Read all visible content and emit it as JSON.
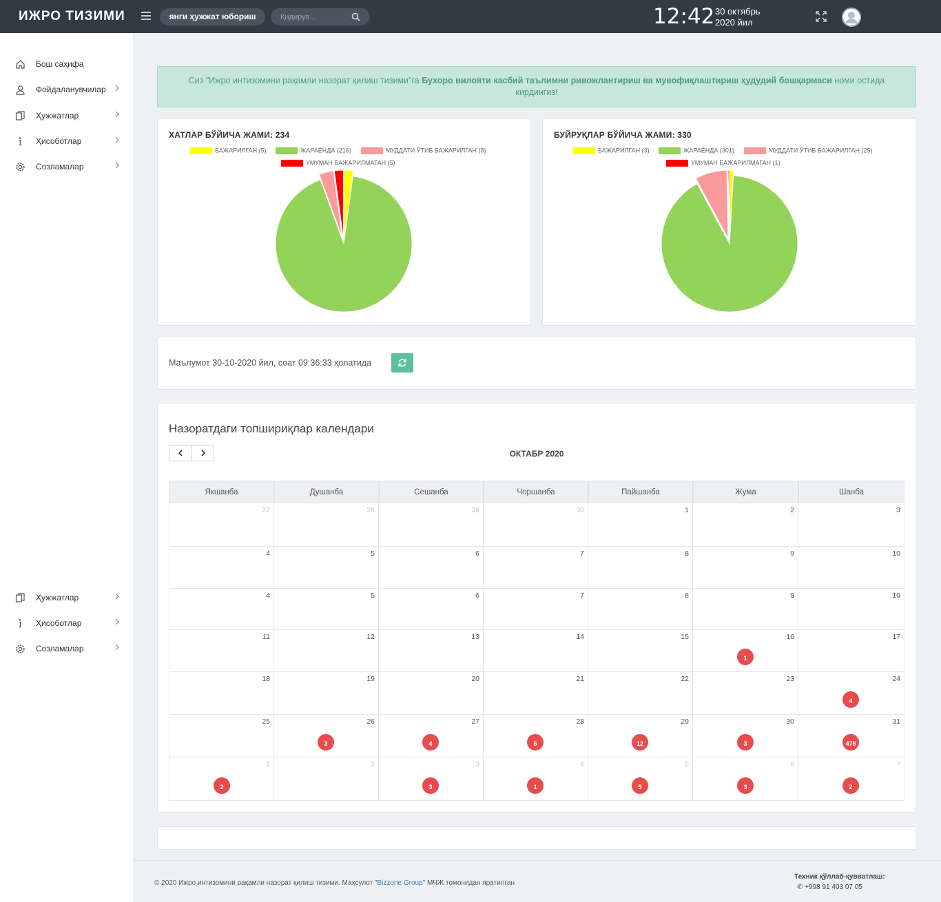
{
  "header": {
    "brand": "ИЖРО ТИЗИМИ",
    "new_doc_label": "янги ҳужжат юбориш",
    "search_placeholder": "Қидирув...",
    "time": "12:42",
    "date_line1": "30 октябрь",
    "date_line2": "2020 йил"
  },
  "sidebar": {
    "top_items": [
      {
        "label": "Бош саҳифа",
        "icon": "home-icon",
        "chevron": false
      },
      {
        "label": "Фойдаланувчилар",
        "icon": "user-icon",
        "chevron": true
      },
      {
        "label": "Ҳужжатлар",
        "icon": "documents-icon",
        "chevron": true
      },
      {
        "label": "Ҳисоботлар",
        "icon": "info-icon",
        "chevron": true
      },
      {
        "label": "Созламалар",
        "icon": "gear-icon",
        "chevron": true
      }
    ],
    "bottom_items": [
      {
        "label": "Ҳужжатлар",
        "icon": "documents-icon",
        "chevron": true
      },
      {
        "label": "Ҳисоботлар",
        "icon": "info-icon",
        "chevron": true
      },
      {
        "label": "Созламалар",
        "icon": "gear-icon",
        "chevron": true
      }
    ]
  },
  "alert": {
    "prefix": "Сиз \"Ижро интизомини рақамли назорат қилиш тизими\"га ",
    "org": "Бухоро вилояти касбий таълимни ривожлантириш ва мувофиқлаштириш ҳудудий бошқармаси",
    "suffix": " номи остида кирдингиз!"
  },
  "colors": {
    "done": "#ffff00",
    "in_progress": "#94d35a",
    "overdue_done": "#fb9a9a",
    "not_done": "#ff0000",
    "badge": "#e84c4c",
    "accent": "#5bbfa0"
  },
  "chart_data": [
    {
      "type": "pie",
      "title": "ХАТЛАР БЎЙИЧА ЖАМИ: 234",
      "categories": [
        "БАЖАРИЛГАН (5)",
        "ЖАРАЁНДА (216)",
        "МУДДАТИ ЎТИБ БАЖАРИЛГАН (8)",
        "УМУМАН БАЖАРИЛМАГАН (5)"
      ],
      "values": [
        5,
        216,
        8,
        5
      ],
      "legend": "top"
    },
    {
      "type": "pie",
      "title": "БУЙРУҚЛАР БЎЙИЧА ЖАМИ: 330",
      "categories": [
        "БАЖАРИЛГАН (3)",
        "ЖАРАЁНДА (301)",
        "МУДДАТИ ЎТИБ БАЖАРИЛГАН (25)",
        "УМУМАН БАЖАРИЛМАГАН (1)"
      ],
      "values": [
        3,
        301,
        25,
        1
      ],
      "legend": "top"
    }
  ],
  "info": {
    "text": "Маълумот 30-10-2020 йил, соат 09:36:33 ҳолатида"
  },
  "calendar": {
    "title": "Назоратдаги топшириқлар календари",
    "month": "ОКТАБР 2020",
    "weekdays": [
      "Якшанба",
      "Душанба",
      "Сешанба",
      "Чоршанба",
      "Пайшанба",
      "Жума",
      "Шанба"
    ],
    "weeks": [
      [
        {
          "d": "27",
          "m": true
        },
        {
          "d": "28",
          "m": true
        },
        {
          "d": "29",
          "m": true
        },
        {
          "d": "30",
          "m": true
        },
        {
          "d": "1"
        },
        {
          "d": "2"
        },
        {
          "d": "3"
        }
      ],
      [
        {
          "d": "4"
        },
        {
          "d": "5"
        },
        {
          "d": "6"
        },
        {
          "d": "7"
        },
        {
          "d": "8"
        },
        {
          "d": "9"
        },
        {
          "d": "10"
        }
      ],
      [
        {
          "d": "4"
        },
        {
          "d": "5"
        },
        {
          "d": "6"
        },
        {
          "d": "7"
        },
        {
          "d": "8"
        },
        {
          "d": "9"
        },
        {
          "d": "10"
        }
      ],
      [
        {
          "d": "11"
        },
        {
          "d": "12"
        },
        {
          "d": "13"
        },
        {
          "d": "14"
        },
        {
          "d": "15"
        },
        {
          "d": "16",
          "b": "1"
        },
        {
          "d": "17"
        }
      ],
      [
        {
          "d": "18"
        },
        {
          "d": "19"
        },
        {
          "d": "20"
        },
        {
          "d": "21"
        },
        {
          "d": "22"
        },
        {
          "d": "23"
        },
        {
          "d": "24",
          "b": "4"
        }
      ],
      [
        {
          "d": "25"
        },
        {
          "d": "26",
          "b": "3"
        },
        {
          "d": "27",
          "b": "4"
        },
        {
          "d": "28",
          "b": "6"
        },
        {
          "d": "29",
          "b": "12"
        },
        {
          "d": "30",
          "b": "3"
        },
        {
          "d": "31",
          "b": "478"
        }
      ],
      [
        {
          "d": "1",
          "m": true,
          "b": "2"
        },
        {
          "d": "2",
          "m": true
        },
        {
          "d": "3",
          "m": true,
          "b": "3"
        },
        {
          "d": "4",
          "m": true,
          "b": "1"
        },
        {
          "d": "5",
          "m": true,
          "b": "5"
        },
        {
          "d": "6",
          "m": true,
          "b": "3"
        },
        {
          "d": "7",
          "m": true,
          "b": "2"
        }
      ]
    ]
  },
  "footer": {
    "prefix": "© 2020 Ижро интизомини рақамли назорат қилиш тизими. Маҳсулот \"",
    "company": "Bizzone Group",
    "suffix": "\" МЧЖ томонидан яратилган",
    "support_title": "Техник қўллаб-қувватлаш:",
    "support_phone": "+998 91 403 07 05"
  }
}
